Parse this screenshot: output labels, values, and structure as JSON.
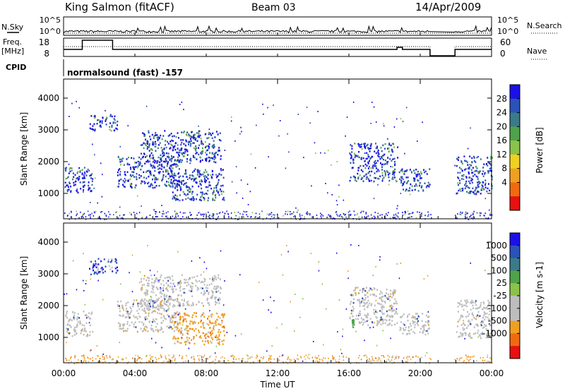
{
  "header": {
    "station": "King Salmon (fitACF)",
    "beam": "Beam 03",
    "date": "14/Apr/2009"
  },
  "top_panels": {
    "nsky_label": "N.Sky",
    "nsearch_label": "N.Search",
    "nsky_ticks": [
      "10^5",
      "10^0"
    ],
    "nsearch_ticks": [
      "10^5",
      "10^0"
    ],
    "freq_label_line1": "Freq.",
    "freq_label_line2": "[MHz]",
    "freq_ticks": [
      "18",
      "8"
    ],
    "nave_label": "Nave",
    "nave_ticks": [
      "60",
      "0"
    ],
    "cpid_label": "CPID",
    "cpid_text": "normalsound (fast) -157"
  },
  "chart_data": [
    {
      "type": "heatmap",
      "name": "power",
      "ylabel": "Slant Range [km]",
      "yticks": [
        1000,
        2000,
        3000,
        4000
      ],
      "ylim": [
        200,
        4600
      ],
      "colorbar_label": "Power [dB]",
      "colorbar_ticks": [
        4,
        8,
        12,
        16,
        20,
        24,
        28
      ],
      "colorbar_colors": [
        "#1c10e8",
        "#2a52b8",
        "#3a7a8a",
        "#4fa24a",
        "#8ac24a",
        "#f0d020",
        "#f0a020",
        "#f06a10",
        "#e81010"
      ],
      "patches": [
        {
          "t0": 0.05,
          "t1": 1.6,
          "r0": 1050,
          "r1": 1850
        },
        {
          "t0": 3.0,
          "t1": 6.5,
          "r0": 1200,
          "r1": 2200
        },
        {
          "t0": 4.3,
          "t1": 8.8,
          "r0": 2000,
          "r1": 3000
        },
        {
          "t0": 6.0,
          "t1": 9.0,
          "r0": 800,
          "r1": 1800
        },
        {
          "t0": 1.4,
          "t1": 3.0,
          "r0": 3000,
          "r1": 3500
        },
        {
          "t0": 16.0,
          "t1": 18.7,
          "r0": 1400,
          "r1": 2600
        },
        {
          "t0": 18.8,
          "t1": 20.5,
          "r0": 1100,
          "r1": 1800
        },
        {
          "t0": 22.0,
          "t1": 24.0,
          "r0": 1000,
          "r1": 2200
        }
      ]
    },
    {
      "type": "heatmap",
      "name": "velocity",
      "ylabel": "Slant Range [km]",
      "yticks": [
        1000,
        2000,
        3000,
        4000
      ],
      "ylim": [
        200,
        4600
      ],
      "xlabel": "Time UT",
      "xticks": [
        "00:00",
        "04:00",
        "08:00",
        "12:00",
        "16:00",
        "20:00",
        "00:00"
      ],
      "xlim": [
        0,
        24
      ],
      "colorbar_label": "Velocity [m s-1]",
      "colorbar_ticks": [
        1000,
        500,
        100,
        25,
        -25,
        -100,
        -500,
        -1000
      ],
      "colorbar_colors": [
        "#1c10e8",
        "#2a52b8",
        "#3a7a8a",
        "#4fa24a",
        "#8ac24a",
        "#bdbdbd",
        "#bdbdbd",
        "#f0a020",
        "#f06a10",
        "#e81010"
      ],
      "patches": [
        {
          "t0": 0.05,
          "t1": 1.6,
          "r0": 1050,
          "r1": 1850
        },
        {
          "t0": 3.0,
          "t1": 6.5,
          "r0": 1200,
          "r1": 2200
        },
        {
          "t0": 4.3,
          "t1": 8.8,
          "r0": 2000,
          "r1": 3000
        },
        {
          "t0": 6.0,
          "t1": 9.0,
          "r0": 800,
          "r1": 1800
        },
        {
          "t0": 1.4,
          "t1": 3.0,
          "r0": 3000,
          "r1": 3500
        },
        {
          "t0": 16.0,
          "t1": 18.7,
          "r0": 1400,
          "r1": 2600
        },
        {
          "t0": 18.8,
          "t1": 20.5,
          "r0": 1100,
          "r1": 1800
        },
        {
          "t0": 22.0,
          "t1": 24.0,
          "r0": 1000,
          "r1": 2200
        }
      ]
    }
  ]
}
